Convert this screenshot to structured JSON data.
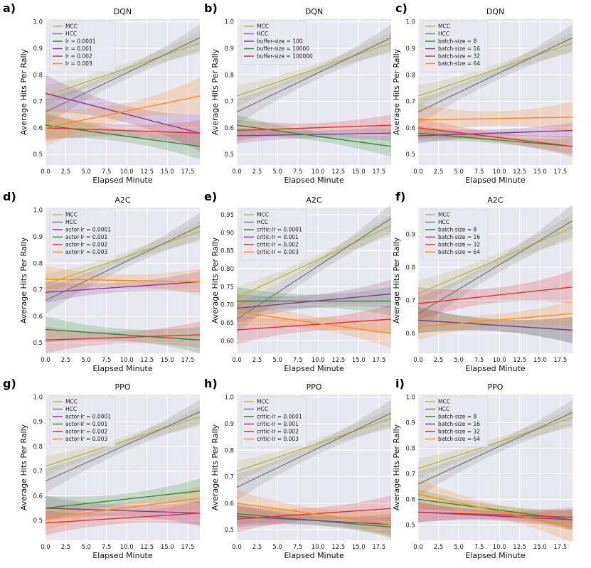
{
  "figure": {
    "common_xlabel": "Elapsed Minute",
    "common_ylabel": "Average Hits Per Rally",
    "baseline_colors": {
      "MCC": "#b5b560",
      "HCC": "#7f7f7f"
    },
    "panel_bg": "#e8e8f0"
  },
  "chart_data": [
    {
      "id": "a",
      "letter": "a)",
      "type": "line",
      "title": "DQN",
      "xlabel": "Elapsed Minute",
      "ylabel": "Average Hits Per Rally",
      "xlim": [
        0,
        19
      ],
      "ylim": [
        0.46,
        1.01
      ],
      "xticks": [
        "0.0",
        "2.5",
        "5.0",
        "7.5",
        "10.0",
        "12.5",
        "15.0",
        "17.5"
      ],
      "yticks": [
        "0.5",
        "0.6",
        "0.7",
        "0.8",
        "0.9",
        "1.0"
      ],
      "series": [
        {
          "name": "MCC",
          "color": "#b5b560",
          "start": 0.72,
          "end": 0.92,
          "band": 0.04
        },
        {
          "name": "HCC",
          "color": "#808080",
          "start": 0.66,
          "end": 0.94,
          "band": 0.05
        },
        {
          "name": "lr = 0.0001",
          "color": "#2e8b2e",
          "start": 0.61,
          "end": 0.53,
          "band": 0.05
        },
        {
          "name": "lr = 0.001",
          "color": "#8b3a8b",
          "start": 0.73,
          "end": 0.58,
          "band": 0.07
        },
        {
          "name": "lr = 0.002",
          "color": "#e03030",
          "start": 0.6,
          "end": 0.58,
          "band": 0.05
        },
        {
          "name": "lr = 0.003",
          "color": "#ff8c1a",
          "start": 0.6,
          "end": 0.72,
          "band": 0.07
        }
      ]
    },
    {
      "id": "b",
      "letter": "b)",
      "type": "line",
      "title": "DQN",
      "xlabel": "Elapsed Minute",
      "ylabel": "Average Hits Per Rally",
      "xlim": [
        0,
        19
      ],
      "ylim": [
        0.46,
        1.01
      ],
      "xticks": [
        "0.0",
        "2.5",
        "5.0",
        "7.5",
        "10.0",
        "12.5",
        "15.0",
        "17.5"
      ],
      "yticks": [
        "0.5",
        "0.6",
        "0.7",
        "0.8",
        "0.9",
        "1.0"
      ],
      "series": [
        {
          "name": "MCC",
          "color": "#b5b560",
          "start": 0.72,
          "end": 0.92,
          "band": 0.04
        },
        {
          "name": "HCC",
          "color": "#808080",
          "start": 0.66,
          "end": 0.94,
          "band": 0.05
        },
        {
          "name": "buffer-size = 100",
          "color": "#8b3a8b",
          "start": 0.57,
          "end": 0.58,
          "band": 0.03
        },
        {
          "name": "buffer-size = 10000",
          "color": "#2e8b2e",
          "start": 0.61,
          "end": 0.53,
          "band": 0.04
        },
        {
          "name": "buffer-size = 100000",
          "color": "#e03030",
          "start": 0.59,
          "end": 0.61,
          "band": 0.04
        }
      ]
    },
    {
      "id": "c",
      "letter": "c)",
      "type": "line",
      "title": "DQN",
      "xlabel": "Elapsed Minute",
      "ylabel": "Average Hits Per Rally",
      "xlim": [
        0,
        19
      ],
      "ylim": [
        0.46,
        1.01
      ],
      "xticks": [
        "0.0",
        "2.5",
        "5.0",
        "7.5",
        "10.0",
        "12.5",
        "15.0",
        "17.5"
      ],
      "yticks": [
        "0.5",
        "0.6",
        "0.7",
        "0.8",
        "0.9",
        "1.0"
      ],
      "series": [
        {
          "name": "MCC",
          "color": "#b5b560",
          "start": 0.72,
          "end": 0.92,
          "band": 0.04
        },
        {
          "name": "HCC",
          "color": "#808080",
          "start": 0.66,
          "end": 0.94,
          "band": 0.05
        },
        {
          "name": "batch-size = 8",
          "color": "#2e8b2e",
          "start": 0.58,
          "end": 0.53,
          "band": 0.03
        },
        {
          "name": "batch-size = 16",
          "color": "#8b3a8b",
          "start": 0.57,
          "end": 0.59,
          "band": 0.03
        },
        {
          "name": "batch-size = 32",
          "color": "#e03030",
          "start": 0.6,
          "end": 0.53,
          "band": 0.04
        },
        {
          "name": "batch-size = 64",
          "color": "#ff8c1a",
          "start": 0.63,
          "end": 0.64,
          "band": 0.06
        }
      ]
    },
    {
      "id": "d",
      "letter": "d)",
      "type": "line",
      "title": "A2C",
      "xlabel": "Elapsed Minute",
      "ylabel": "Average Hits Per Rally",
      "xlim": [
        0,
        19
      ],
      "ylim": [
        0.46,
        1.01
      ],
      "xticks": [
        "0.0",
        "2.5",
        "5.0",
        "7.5",
        "10.0",
        "12.5",
        "15.0",
        "17.5"
      ],
      "yticks": [
        "0.5",
        "0.6",
        "0.7",
        "0.8",
        "0.9",
        "1.0"
      ],
      "series": [
        {
          "name": "MCC",
          "color": "#b5b560",
          "start": 0.72,
          "end": 0.92,
          "band": 0.04
        },
        {
          "name": "HCC",
          "color": "#808080",
          "start": 0.66,
          "end": 0.94,
          "band": 0.05
        },
        {
          "name": "actor-lr = 0.0001",
          "color": "#8b3a8b",
          "start": 0.69,
          "end": 0.73,
          "band": 0.04
        },
        {
          "name": "actor-lr = 0.001",
          "color": "#2e8b2e",
          "start": 0.55,
          "end": 0.51,
          "band": 0.05
        },
        {
          "name": "actor-lr = 0.002",
          "color": "#e03030",
          "start": 0.51,
          "end": 0.53,
          "band": 0.05
        },
        {
          "name": "actor-lr = 0.003",
          "color": "#ff8c1a",
          "start": 0.74,
          "end": 0.73,
          "band": 0.05
        }
      ]
    },
    {
      "id": "e",
      "letter": "e)",
      "type": "line",
      "title": "A2C",
      "xlabel": "Elapsed Minute",
      "ylabel": "Average Hits Per Rally",
      "xlim": [
        0,
        19
      ],
      "ylim": [
        0.565,
        0.97
      ],
      "xticks": [
        "0.0",
        "2.5",
        "5.0",
        "7.5",
        "10.0",
        "12.5",
        "15.0",
        "17.5"
      ],
      "yticks": [
        "0.60",
        "0.65",
        "0.70",
        "0.75",
        "0.80",
        "0.85",
        "0.90",
        "0.95"
      ],
      "series": [
        {
          "name": "MCC",
          "color": "#b5b560",
          "start": 0.72,
          "end": 0.92,
          "band": 0.03
        },
        {
          "name": "HCC",
          "color": "#808080",
          "start": 0.66,
          "end": 0.94,
          "band": 0.04
        },
        {
          "name": "critic-lr = 0.0001",
          "color": "#2e8b2e",
          "start": 0.71,
          "end": 0.71,
          "band": 0.04
        },
        {
          "name": "critic-lr = 0.001",
          "color": "#8b3a8b",
          "start": 0.69,
          "end": 0.73,
          "band": 0.04
        },
        {
          "name": "critic-lr = 0.002",
          "color": "#e03030",
          "start": 0.63,
          "end": 0.66,
          "band": 0.04
        },
        {
          "name": "critic-lr = 0.003",
          "color": "#ff8c1a",
          "start": 0.68,
          "end": 0.62,
          "band": 0.04
        }
      ]
    },
    {
      "id": "f",
      "letter": "f)",
      "type": "line",
      "title": "A2C",
      "xlabel": "Elapsed Minute",
      "ylabel": "Average Hits Per Rally",
      "xlim": [
        0,
        19
      ],
      "ylim": [
        0.54,
        0.98
      ],
      "xticks": [
        "0.0",
        "2.5",
        "5.0",
        "7.5",
        "10.0",
        "12.5",
        "15.0",
        "17.5"
      ],
      "yticks": [
        "0.6",
        "0.7",
        "0.8",
        "0.9"
      ],
      "series": [
        {
          "name": "MCC",
          "color": "#b5b560",
          "start": 0.72,
          "end": 0.92,
          "band": 0.04
        },
        {
          "name": "HCC",
          "color": "#808080",
          "start": 0.66,
          "end": 0.94,
          "band": 0.05
        },
        {
          "name": "batch-size = 8",
          "color": "#2e8b2e",
          "start": 0.64,
          "end": 0.61,
          "band": 0.04
        },
        {
          "name": "batch-size = 16",
          "color": "#8b3a8b",
          "start": 0.64,
          "end": 0.61,
          "band": 0.04
        },
        {
          "name": "batch-size = 32",
          "color": "#e03030",
          "start": 0.69,
          "end": 0.74,
          "band": 0.05
        },
        {
          "name": "batch-size = 64",
          "color": "#ff8c1a",
          "start": 0.62,
          "end": 0.66,
          "band": 0.04
        }
      ]
    },
    {
      "id": "g",
      "letter": "g)",
      "type": "line",
      "title": "PPO",
      "xlabel": "Elapsed Minute",
      "ylabel": "Average Hits Per Rally",
      "xlim": [
        0,
        19
      ],
      "ylim": [
        0.42,
        1.01
      ],
      "xticks": [
        "0.0",
        "2.5",
        "5.0",
        "7.5",
        "10.0",
        "12.5",
        "15.0",
        "17.5"
      ],
      "yticks": [
        "0.5",
        "0.6",
        "0.7",
        "0.8",
        "0.9",
        "1.0"
      ],
      "series": [
        {
          "name": "MCC",
          "color": "#b5b560",
          "start": 0.72,
          "end": 0.92,
          "band": 0.04
        },
        {
          "name": "HCC",
          "color": "#808080",
          "start": 0.66,
          "end": 0.94,
          "band": 0.05
        },
        {
          "name": "actor-lr = 0.0001",
          "color": "#8b3a8b",
          "start": 0.55,
          "end": 0.53,
          "band": 0.05
        },
        {
          "name": "actor-lr = 0.001",
          "color": "#2e8b2e",
          "start": 0.55,
          "end": 0.62,
          "band": 0.05
        },
        {
          "name": "actor-lr = 0.002",
          "color": "#e03030",
          "start": 0.49,
          "end": 0.53,
          "band": 0.05
        },
        {
          "name": "actor-lr = 0.003",
          "color": "#ff8c1a",
          "start": 0.51,
          "end": 0.59,
          "band": 0.05
        }
      ]
    },
    {
      "id": "h",
      "letter": "h)",
      "type": "line",
      "title": "PPO",
      "xlabel": "Elapsed Minute",
      "ylabel": "Average Hits Per Rally",
      "xlim": [
        0,
        19
      ],
      "ylim": [
        0.46,
        1.01
      ],
      "xticks": [
        "0.0",
        "2.5",
        "5.0",
        "7.5",
        "10.0",
        "12.5",
        "15.0",
        "17.5"
      ],
      "yticks": [
        "0.5",
        "0.6",
        "0.7",
        "0.8",
        "0.9",
        "1.0"
      ],
      "series": [
        {
          "name": "MCC",
          "color": "#b5b560",
          "start": 0.72,
          "end": 0.92,
          "band": 0.04
        },
        {
          "name": "HCC",
          "color": "#808080",
          "start": 0.66,
          "end": 0.94,
          "band": 0.05
        },
        {
          "name": "critic-lr = 0.0001",
          "color": "#2e8b2e",
          "start": 0.56,
          "end": 0.51,
          "band": 0.04
        },
        {
          "name": "critic-lr = 0.001",
          "color": "#8b3a8b",
          "start": 0.55,
          "end": 0.52,
          "band": 0.04
        },
        {
          "name": "critic-lr = 0.002",
          "color": "#e03030",
          "start": 0.54,
          "end": 0.58,
          "band": 0.05
        },
        {
          "name": "critic-lr = 0.003",
          "color": "#ff8c1a",
          "start": 0.6,
          "end": 0.52,
          "band": 0.05
        }
      ]
    },
    {
      "id": "i",
      "letter": "i)",
      "type": "line",
      "title": "PPO",
      "xlabel": "Elapsed Minute",
      "ylabel": "Average Hits Per Rally",
      "xlim": [
        0,
        19
      ],
      "ylim": [
        0.44,
        1.01
      ],
      "xticks": [
        "0.0",
        "2.5",
        "5.0",
        "7.5",
        "10.0",
        "12.5",
        "15.0",
        "17.5"
      ],
      "yticks": [
        "0.5",
        "0.6",
        "0.7",
        "0.8",
        "0.9",
        "1.0"
      ],
      "series": [
        {
          "name": "MCC",
          "color": "#b5b560",
          "start": 0.72,
          "end": 0.92,
          "band": 0.04
        },
        {
          "name": "HCC",
          "color": "#808080",
          "start": 0.66,
          "end": 0.94,
          "band": 0.05
        },
        {
          "name": "batch-size = 8",
          "color": "#2e8b2e",
          "start": 0.6,
          "end": 0.52,
          "band": 0.04
        },
        {
          "name": "batch-size = 16",
          "color": "#8b3a8b",
          "start": 0.55,
          "end": 0.52,
          "band": 0.04
        },
        {
          "name": "batch-size = 32",
          "color": "#e03030",
          "start": 0.55,
          "end": 0.53,
          "band": 0.04
        },
        {
          "name": "batch-size = 64",
          "color": "#ff8c1a",
          "start": 0.62,
          "end": 0.49,
          "band": 0.06
        }
      ]
    }
  ]
}
